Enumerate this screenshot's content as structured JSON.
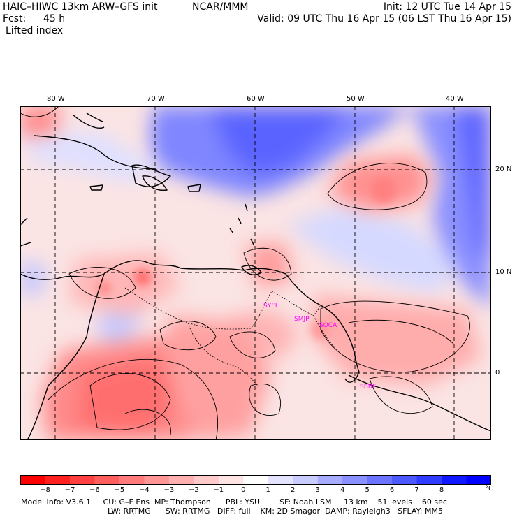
{
  "header": {
    "title_left": "HAIC–HIWC 13km ARW–GFS init",
    "title_center": "NCAR/MMM",
    "init": "Init: 12 UTC Tue 14 Apr 15",
    "fcst_label": "Fcst:",
    "fcst_value": "45 h",
    "valid": "Valid: 09 UTC Thu 16 Apr 15 (06 LST Thu 16 Apr 15)",
    "field": "Lifted index"
  },
  "map": {
    "lon_labels": [
      "80 W",
      "70 W",
      "60 W",
      "50 W",
      "40 W"
    ],
    "lat_labels": [
      "20 N",
      "10 N",
      "0"
    ],
    "stations": [
      "SYEL",
      "SMJP",
      "SOCA",
      "SBBE"
    ],
    "stations_color": "#ff00ff"
  },
  "colorbar": {
    "unit": "°C",
    "tick_labels": [
      "−8",
      "−7",
      "−6",
      "−5",
      "−4",
      "−3",
      "−2",
      "−1",
      "0",
      "1",
      "2",
      "3",
      "4",
      "5",
      "6",
      "7",
      "8"
    ],
    "colors": [
      "#ff0000",
      "#ff2020",
      "#ff4040",
      "#ff5e5e",
      "#ff7a7a",
      "#ff9696",
      "#ffb0b0",
      "#ffcaca",
      "#ffe4e4",
      "#ffffff",
      "#e4e4ff",
      "#caccff",
      "#a8acff",
      "#8a90ff",
      "#6c74ff",
      "#4e58ff",
      "#303cff",
      "#1018ff",
      "#0000ff"
    ]
  },
  "footer": {
    "line1": "Model Info: V3.6.1     CU: G–F Ens  MP: Thompson      PBL: YSU        SF: Noah LSM     13 km    51 levels    60 sec",
    "line2": "LW: RRTMG      SW: RRTMG   DIFF: full    KM: 2D Smagor  DAMP: Rayleigh3   SFLAY: MM5"
  }
}
